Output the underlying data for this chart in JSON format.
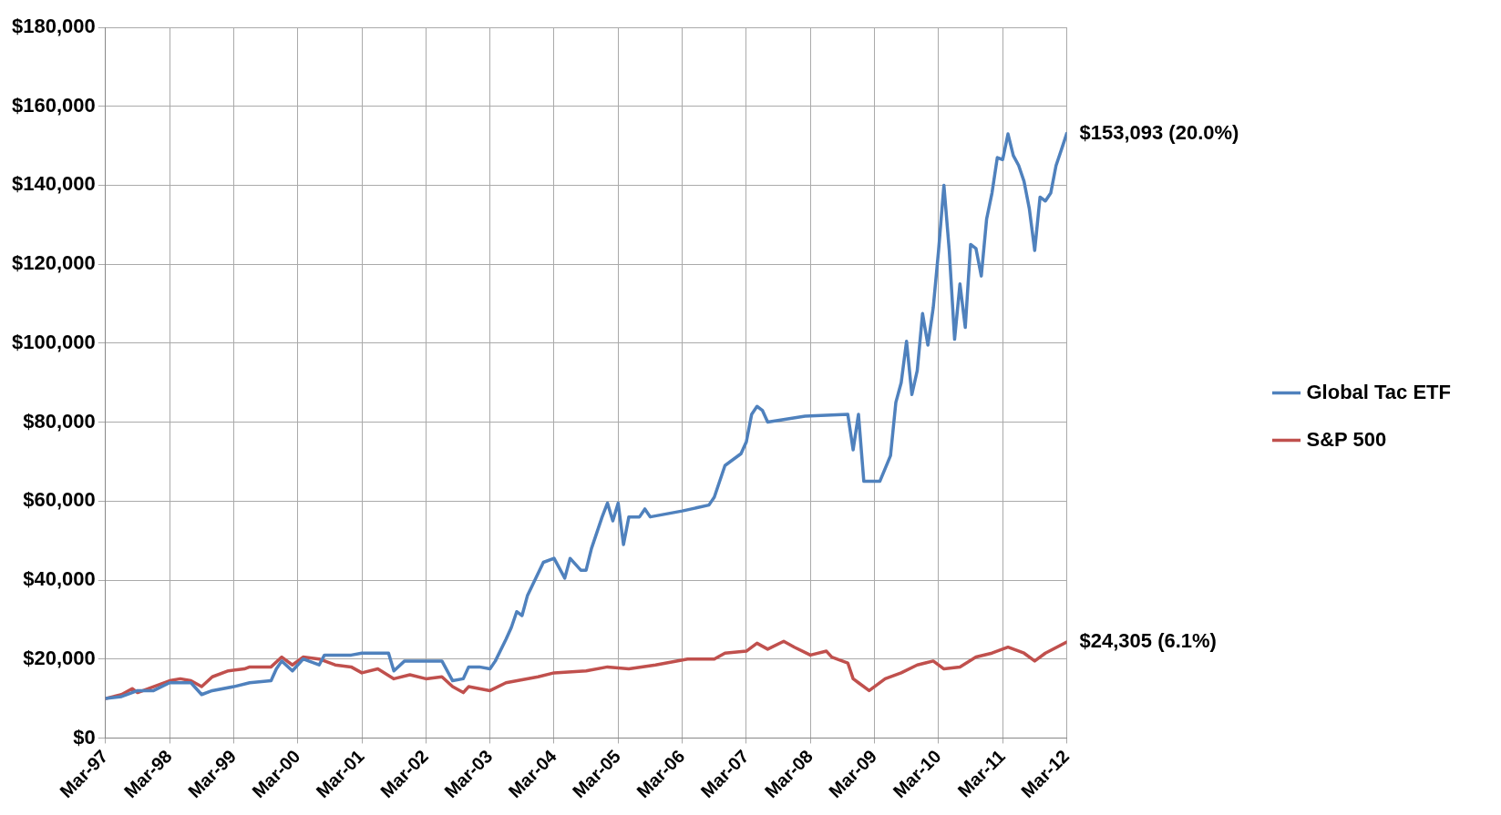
{
  "chart_data": {
    "type": "line",
    "xlim": [
      "1997-03",
      "2012-03"
    ],
    "xticks": [
      {
        "value": "1997-03",
        "label": "Mar-97"
      },
      {
        "value": "1998-03",
        "label": "Mar-98"
      },
      {
        "value": "1999-03",
        "label": "Mar-99"
      },
      {
        "value": "2000-03",
        "label": "Mar-00"
      },
      {
        "value": "2001-03",
        "label": "Mar-01"
      },
      {
        "value": "2002-03",
        "label": "Mar-02"
      },
      {
        "value": "2003-03",
        "label": "Mar-03"
      },
      {
        "value": "2004-03",
        "label": "Mar-04"
      },
      {
        "value": "2005-03",
        "label": "Mar-05"
      },
      {
        "value": "2006-03",
        "label": "Mar-06"
      },
      {
        "value": "2007-03",
        "label": "Mar-07"
      },
      {
        "value": "2008-03",
        "label": "Mar-08"
      },
      {
        "value": "2009-03",
        "label": "Mar-09"
      },
      {
        "value": "2010-03",
        "label": "Mar-10"
      },
      {
        "value": "2011-03",
        "label": "Mar-11"
      },
      {
        "value": "2012-03",
        "label": "Mar-12"
      }
    ],
    "ylim": [
      0,
      180000
    ],
    "yticks": [
      {
        "value": 0,
        "label": "$0"
      },
      {
        "value": 20000,
        "label": "$20,000"
      },
      {
        "value": 40000,
        "label": "$40,000"
      },
      {
        "value": 60000,
        "label": "$60,000"
      },
      {
        "value": 80000,
        "label": "$80,000"
      },
      {
        "value": 100000,
        "label": "$100,000"
      },
      {
        "value": 120000,
        "label": "$120,000"
      },
      {
        "value": 140000,
        "label": "$140,000"
      },
      {
        "value": 160000,
        "label": "$160,000"
      },
      {
        "value": 180000,
        "label": "$180,000"
      }
    ],
    "grid": true,
    "legend": "right",
    "marker": "none",
    "line_style": "solid",
    "series": [
      {
        "name": "Global Tac ETF",
        "color": "#4f81bd",
        "x": [
          "1997-03",
          "1997-06",
          "1997-09",
          "1997-12",
          "1998-03",
          "1998-07",
          "1998-09",
          "1998-11",
          "1999-03",
          "1999-06",
          "1999-10",
          "1999-11",
          "1999-12",
          "2000-02",
          "2000-04",
          "2000-07",
          "2000-08",
          "2001-01",
          "2001-03",
          "2001-08",
          "2001-09",
          "2001-11",
          "2002-06",
          "2002-08",
          "2002-10",
          "2002-11",
          "2003-01",
          "2003-03",
          "2003-04",
          "2003-06",
          "2003-07",
          "2003-08",
          "2003-09",
          "2003-10",
          "2004-01",
          "2004-03",
          "2004-05",
          "2004-06",
          "2004-08",
          "2004-09",
          "2004-10",
          "2004-12",
          "2005-01",
          "2005-02",
          "2005-03",
          "2005-04",
          "2005-05",
          "2005-07",
          "2005-08",
          "2005-09",
          "2006-03",
          "2006-08",
          "2006-09",
          "2006-11",
          "2007-02",
          "2007-03",
          "2007-04",
          "2007-05",
          "2007-06",
          "2007-07",
          "2008-02",
          "2008-10",
          "2008-11",
          "2008-12",
          "2009-01",
          "2009-04",
          "2009-06",
          "2009-07",
          "2009-08",
          "2009-09",
          "2009-10",
          "2009-11",
          "2009-12",
          "2010-01",
          "2010-02",
          "2010-03",
          "2010-04",
          "2010-05",
          "2010-06",
          "2010-07",
          "2010-08",
          "2010-09",
          "2010-10",
          "2010-11",
          "2010-12",
          "2011-01",
          "2011-02",
          "2011-03",
          "2011-04",
          "2011-05",
          "2011-06",
          "2011-07",
          "2011-08",
          "2011-09",
          "2011-10",
          "2011-11",
          "2011-12",
          "2012-01",
          "2012-02",
          "2012-03"
        ],
        "values": [
          10000,
          10500,
          12000,
          12000,
          14000,
          14000,
          11000,
          12000,
          13000,
          14000,
          14500,
          17500,
          19500,
          17000,
          20000,
          18500,
          21000,
          21000,
          21500,
          21500,
          17000,
          19500,
          19500,
          14500,
          15000,
          18000,
          18000,
          17500,
          19500,
          25000,
          28000,
          32000,
          31000,
          36000,
          44500,
          45500,
          40500,
          45500,
          42500,
          42500,
          48000,
          56000,
          59500,
          55000,
          59500,
          49000,
          56000,
          56000,
          58000,
          56000,
          57500,
          59000,
          61000,
          69000,
          72000,
          75000,
          82000,
          84000,
          83000,
          80000,
          81500,
          82000,
          73000,
          82000,
          65000,
          65000,
          71500,
          85000,
          90000,
          100500,
          87000,
          93000,
          107500,
          99500,
          109000,
          123500,
          140000,
          123500,
          101000,
          115000,
          104000,
          125000,
          124000,
          117000,
          131500,
          138000,
          147000,
          146500,
          153000,
          147500,
          145000,
          141000,
          134000,
          123500,
          137000,
          136000,
          138000,
          145000,
          149000,
          153093
        ]
      },
      {
        "name": "S&P 500",
        "color": "#c0504d",
        "x": [
          "1997-03",
          "1997-06",
          "1997-08",
          "1997-09",
          "1997-12",
          "1998-03",
          "1998-05",
          "1998-07",
          "1998-09",
          "1998-11",
          "1999-02",
          "1999-05",
          "1999-06",
          "1999-10",
          "1999-12",
          "2000-02",
          "2000-04",
          "2000-07",
          "2000-10",
          "2001-01",
          "2001-03",
          "2001-06",
          "2001-09",
          "2001-12",
          "2002-03",
          "2002-06",
          "2002-08",
          "2002-10",
          "2002-11",
          "2003-03",
          "2003-06",
          "2003-12",
          "2004-03",
          "2004-09",
          "2005-01",
          "2005-05",
          "2005-10",
          "2006-04",
          "2006-09",
          "2006-11",
          "2007-03",
          "2007-05",
          "2007-07",
          "2007-10",
          "2007-12",
          "2008-03",
          "2008-06",
          "2008-07",
          "2008-10",
          "2008-11",
          "2008-12",
          "2009-02",
          "2009-05",
          "2009-08",
          "2009-11",
          "2010-02",
          "2010-04",
          "2010-07",
          "2010-10",
          "2011-01",
          "2011-04",
          "2011-07",
          "2011-09",
          "2011-11",
          "2012-03"
        ],
        "values": [
          10000,
          11000,
          12500,
          11500,
          13000,
          14500,
          15000,
          14500,
          13000,
          15500,
          17000,
          17500,
          18000,
          18000,
          20500,
          18500,
          20500,
          20000,
          18500,
          18000,
          16500,
          17500,
          15000,
          16000,
          15000,
          15500,
          13000,
          11500,
          13000,
          12000,
          14000,
          15500,
          16500,
          17000,
          18000,
          17500,
          18500,
          20000,
          20000,
          21500,
          22000,
          24000,
          22500,
          24500,
          23000,
          21000,
          22000,
          20500,
          19000,
          15000,
          14000,
          12000,
          15000,
          16500,
          18500,
          19500,
          17500,
          18000,
          20500,
          21500,
          23000,
          21500,
          19500,
          21500,
          24305
        ]
      }
    ],
    "annotations": [
      {
        "text": "$153,093 (20.0%)",
        "x": "2012-03",
        "y": 153093
      },
      {
        "text": "$24,305 (6.1%)",
        "x": "2012-03",
        "y": 24305
      }
    ]
  }
}
